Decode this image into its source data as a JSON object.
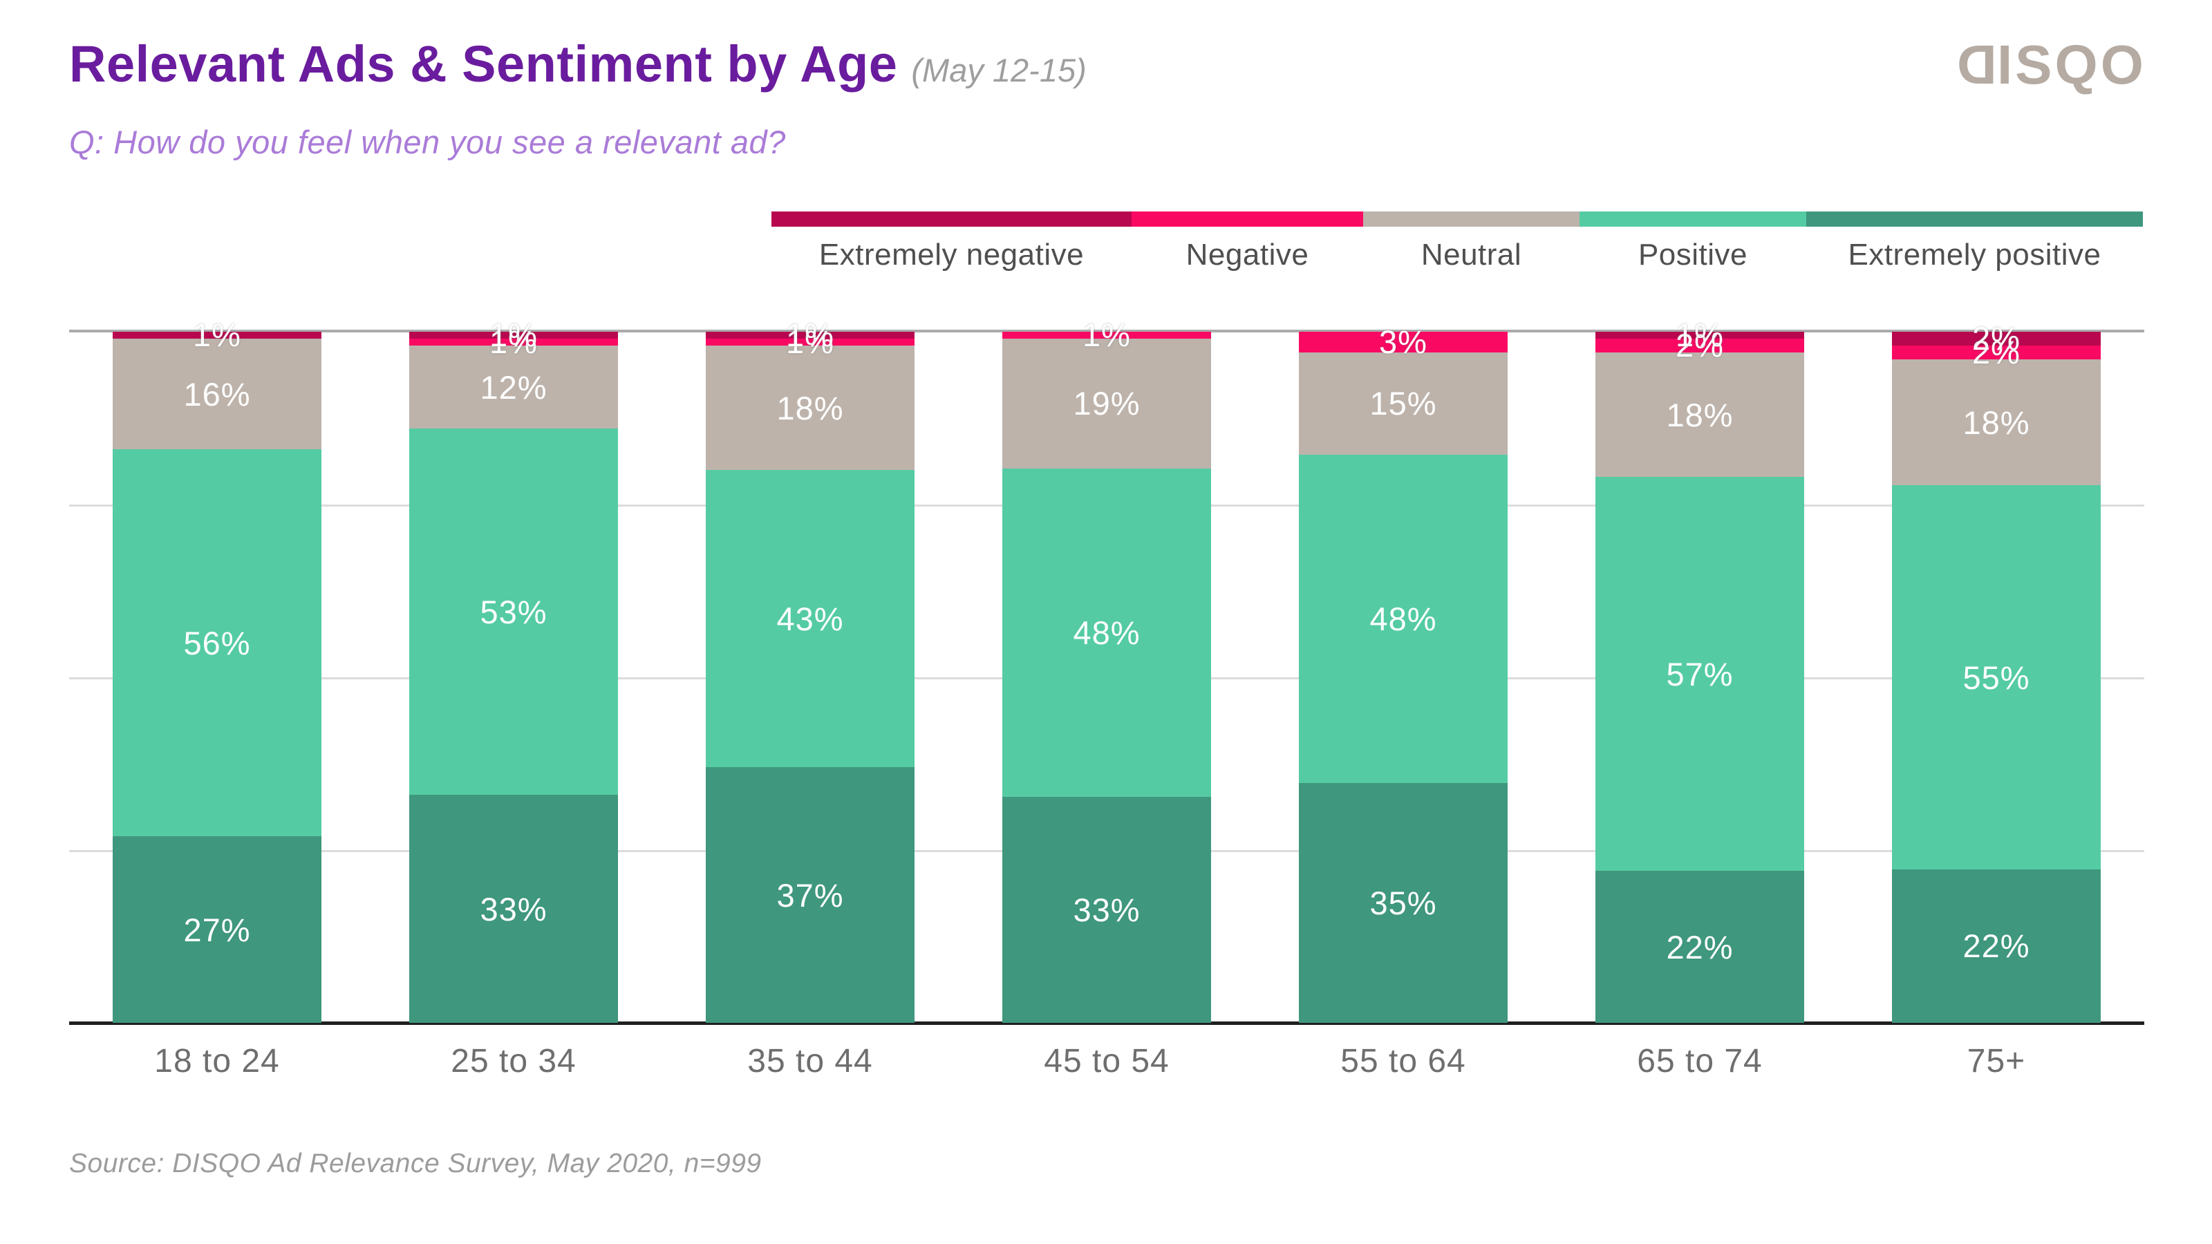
{
  "header": {
    "title": "Relevant Ads & Sentiment by Age",
    "date_note": "(May 12-15)",
    "subtitle": "Q: How do you feel when you see a relevant ad?",
    "logo_d": "D",
    "logo_rest": "ISQO"
  },
  "legend": {
    "items": [
      {
        "label": "Extremely negative",
        "color": "#b8074f"
      },
      {
        "label": "Negative",
        "color": "#fa0963"
      },
      {
        "label": "Neutral",
        "color": "#bdb3ab"
      },
      {
        "label": "Positive",
        "color": "#55cba4"
      },
      {
        "label": "Extremely positive",
        "color": "#3f977d"
      }
    ]
  },
  "chart_data": {
    "type": "bar",
    "subtype": "stacked-100-percent",
    "categories": [
      "18 to 24",
      "25 to 34",
      "35 to 44",
      "45 to 54",
      "55 to 64",
      "65 to 74",
      "75+"
    ],
    "series": [
      {
        "name": "Extremely negative",
        "color": "#b8074f",
        "values": [
          1,
          1,
          1,
          0,
          0,
          1,
          2
        ]
      },
      {
        "name": "Negative",
        "color": "#fa0963",
        "values": [
          0,
          1,
          1,
          1,
          3,
          2,
          2
        ]
      },
      {
        "name": "Neutral",
        "color": "#bdb3ab",
        "values": [
          16,
          12,
          18,
          19,
          15,
          18,
          18
        ]
      },
      {
        "name": "Positive",
        "color": "#55cba4",
        "values": [
          56,
          53,
          43,
          48,
          48,
          57,
          55
        ]
      },
      {
        "name": "Extremely positive",
        "color": "#3f977d",
        "values": [
          27,
          33,
          37,
          33,
          35,
          22,
          22
        ]
      }
    ],
    "label_format": "percent",
    "ylim": [
      0,
      100
    ],
    "gridlines_pct": [
      25,
      50,
      75,
      100
    ],
    "legend_position": "top-right",
    "stack_order_bottom_to_top": [
      "Extremely positive",
      "Positive",
      "Neutral",
      "Negative",
      "Extremely negative"
    ]
  },
  "footer": {
    "source": "Source: DISQO Ad Relevance Survey, May 2020, n=999"
  }
}
